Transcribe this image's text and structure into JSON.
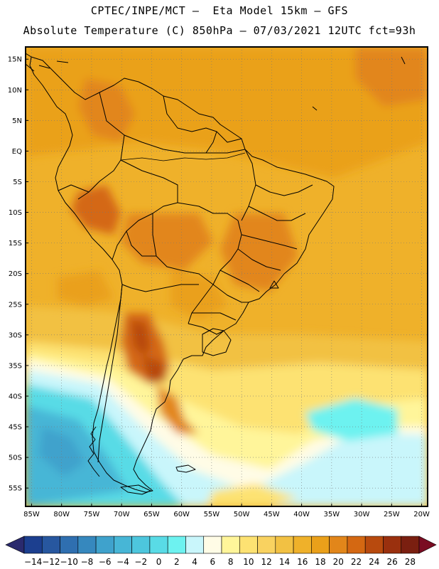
{
  "header": {
    "line1": "CPTEC/INPE/MCT –  Eta Model 15km – GFS",
    "line2": "Absolute Temperature (C) 850hPa – 07/03/2021 12UTC fct=93h"
  },
  "axes": {
    "lat_labels": [
      "15N",
      "10N",
      "5N",
      "EQ",
      "5S",
      "10S",
      "15S",
      "20S",
      "25S",
      "30S",
      "35S",
      "40S",
      "45S",
      "50S",
      "55S"
    ],
    "lat_values": [
      15,
      10,
      5,
      0,
      -5,
      -10,
      -15,
      -20,
      -25,
      -30,
      -35,
      -40,
      -45,
      -50,
      -55
    ],
    "lon_labels": [
      "85W",
      "80W",
      "75W",
      "70W",
      "65W",
      "60W",
      "55W",
      "50W",
      "45W",
      "40W",
      "35W",
      "30W",
      "25W",
      "20W"
    ],
    "lon_values": [
      -85,
      -80,
      -75,
      -70,
      -65,
      -60,
      -55,
      -50,
      -45,
      -40,
      -35,
      -30,
      -25,
      -20
    ],
    "lat_range": [
      -58,
      17
    ],
    "lon_range": [
      -86,
      -19
    ]
  },
  "colorbar": {
    "labels": [
      "-14",
      "-12",
      "-10",
      "-8",
      "-6",
      "-4",
      "-2",
      "0",
      "2",
      "4",
      "6",
      "8",
      "10",
      "12",
      "14",
      "16",
      "18",
      "20",
      "22",
      "24",
      "26",
      "28"
    ],
    "colors": [
      "#1c3f8f",
      "#27579f",
      "#2f6fb0",
      "#3688be",
      "#3fa2cc",
      "#47b6d6",
      "#4dc6dd",
      "#59dbe6",
      "#6df2f0",
      "#c9f6fb",
      "#fffce6",
      "#fff59a",
      "#fde272",
      "#f9d260",
      "#f2c143",
      "#efb12a",
      "#eaa01a",
      "#e2861a",
      "#d46812",
      "#b84a0e",
      "#9a300e",
      "#7a1f10"
    ],
    "arrow_low_color": "#2a2a6e",
    "arrow_high_color": "#7a0c22"
  }
}
